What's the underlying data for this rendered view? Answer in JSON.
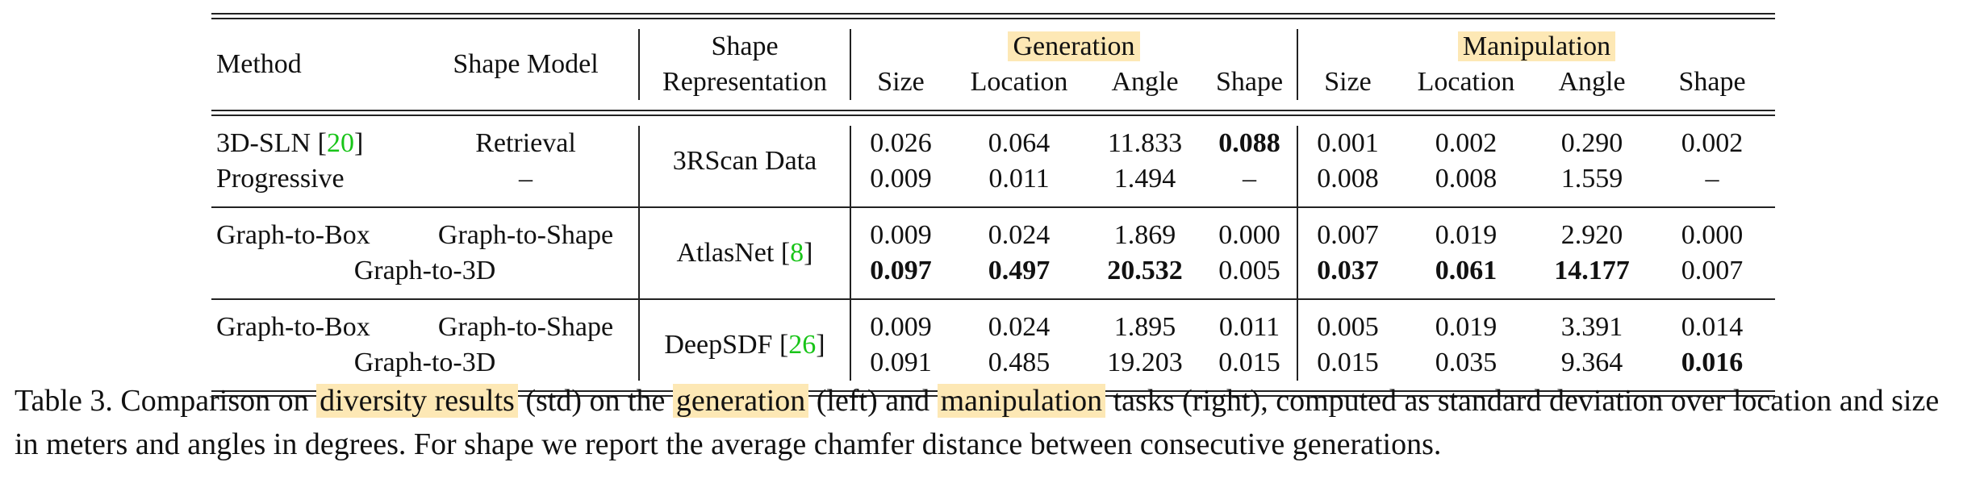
{
  "header": {
    "method": "Method",
    "shape_model": "Shape Model",
    "shape_rep_line1": "Shape",
    "shape_rep_line2": "Representation",
    "generation": "Generation",
    "manipulation": "Manipulation",
    "metrics": [
      "Size",
      "Location",
      "Angle",
      "Shape",
      "Size",
      "Location",
      "Angle",
      "Shape"
    ]
  },
  "groups": [
    {
      "representation": "3RScan Data",
      "representation_ref": "",
      "rows": [
        {
          "method": "3D-SLN [",
          "method_ref": "20",
          "method_tail": "]",
          "model": "Retrieval",
          "values": [
            "0.026",
            "0.064",
            "11.833",
            "0.088",
            "0.001",
            "0.002",
            "0.290",
            "0.002"
          ]
        },
        {
          "method": "Progressive",
          "method_ref": "",
          "method_tail": "",
          "model": "–",
          "values": [
            "0.009",
            "0.011",
            "1.494",
            "–",
            "0.008",
            "0.008",
            "1.559",
            "–"
          ]
        }
      ]
    },
    {
      "representation": "AtlasNet [",
      "representation_ref": "8",
      "rows": [
        {
          "method": "Graph-to-Box",
          "model": "Graph-to-Shape",
          "values": [
            "0.009",
            "0.024",
            "1.869",
            "0.000",
            "0.007",
            "0.019",
            "2.920",
            "0.000"
          ]
        },
        {
          "method": "Graph-to-3D",
          "values": [
            "0.097",
            "0.497",
            "20.532",
            "0.005",
            "0.037",
            "0.061",
            "14.177",
            "0.007"
          ]
        }
      ]
    },
    {
      "representation": "DeepSDF [",
      "representation_ref": "26",
      "rows": [
        {
          "method": "Graph-to-Box",
          "model": "Graph-to-Shape",
          "values": [
            "0.009",
            "0.024",
            "1.895",
            "0.011",
            "0.005",
            "0.019",
            "3.391",
            "0.014"
          ]
        },
        {
          "method": "Graph-to-3D",
          "values": [
            "0.091",
            "0.485",
            "19.203",
            "0.015",
            "0.015",
            "0.035",
            "9.364",
            "0.016"
          ]
        }
      ]
    }
  ],
  "caption": {
    "part1": "Table 3. Comparison on ",
    "hl1": "diversity results",
    "part2": " (std) on the ",
    "hl2": "generation",
    "part3": " (left) and ",
    "hl3": "manipulation",
    "part4": " tasks (right), computed as standard deviation over location and size in meters and angles in degrees. For shape we report the average chamfer distance between consecutive generations."
  }
}
